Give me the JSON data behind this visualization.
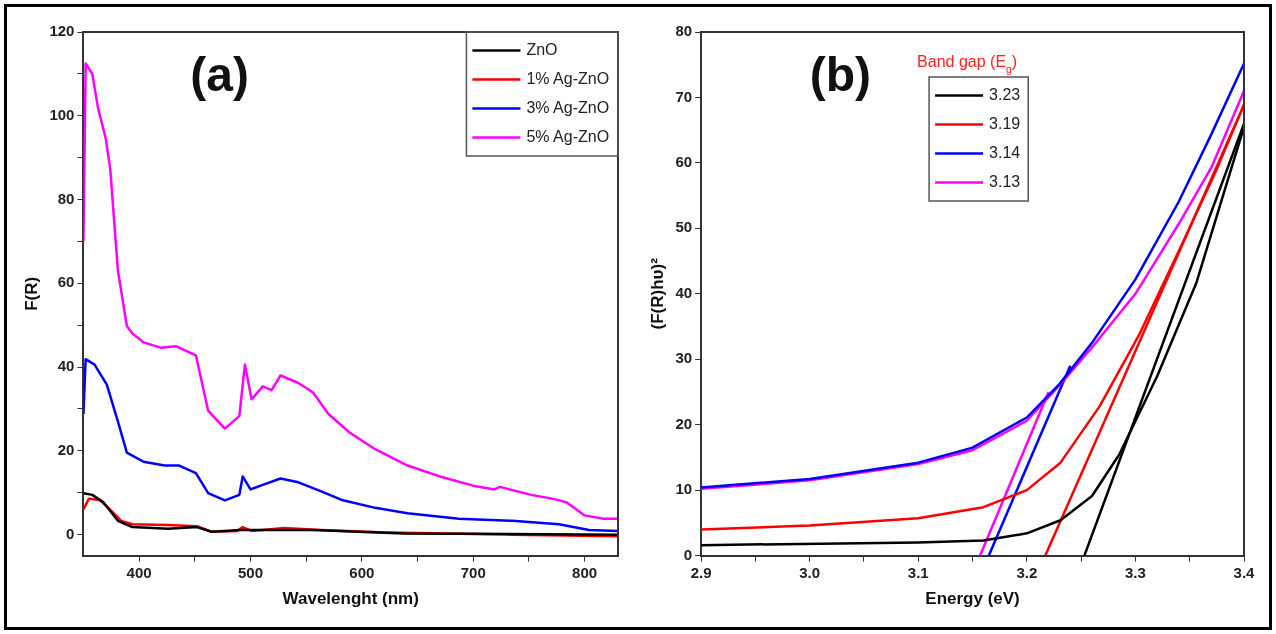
{
  "chart_data": [
    {
      "type": "line",
      "xlabel": "Wavelenght (nm)",
      "ylabel": "F(R)",
      "annotations": [
        "(a)"
      ],
      "legend": "top right",
      "grid": false,
      "xlim": [
        350,
        830
      ],
      "xticks": [
        400,
        {
          "value": 450,
          "label": null
        },
        500,
        {
          "value": 550,
          "label": null
        },
        600,
        {
          "value": 650,
          "label": null
        },
        700,
        {
          "value": 750,
          "label": null
        },
        800
      ],
      "ylim": [
        -5,
        120
      ],
      "yticks": [
        0,
        {
          "value": 10,
          "label": null
        },
        20,
        {
          "value": 30,
          "label": null
        },
        40,
        {
          "value": 50,
          "label": null
        },
        60,
        {
          "value": 70,
          "label": null
        },
        80,
        {
          "value": 90,
          "label": null
        },
        100,
        {
          "value": 110,
          "label": null
        },
        120
      ],
      "series": [
        {
          "name": "ZnO",
          "color": "#000000",
          "x": [
            350,
            358,
            368,
            381,
            394,
            426,
            452,
            465,
            491,
            556,
            638,
            830
          ],
          "values": [
            9.9,
            9.5,
            7.7,
            3.3,
            1.8,
            1.4,
            1.8,
            0.7,
            1.1,
            1.1,
            0.3,
            0
          ]
        },
        {
          "name": "1% Ag-ZnO",
          "color": "#ff0000",
          "x": [
            350,
            355,
            365,
            374,
            384,
            394,
            426,
            452,
            465,
            488,
            493,
            501,
            530,
            563,
            622,
            735,
            830
          ],
          "values": [
            6,
            8.6,
            8.2,
            6,
            3.3,
            2.5,
            2.3,
            2,
            0.7,
            0.9,
            1.8,
            0.9,
            1.6,
            1.1,
            0.5,
            0,
            -0.4
          ]
        },
        {
          "name": "3% Ag-ZnO",
          "color": "#0000ff",
          "x": [
            350,
            352,
            360,
            371,
            381,
            389,
            404,
            423,
            436,
            451,
            462,
            477,
            490,
            493,
            500,
            511,
            527,
            543,
            563,
            583,
            612,
            641,
            687,
            735,
            777,
            804,
            830
          ],
          "values": [
            28.8,
            41.9,
            40.6,
            35.8,
            27,
            19.6,
            17.4,
            16.5,
            16.5,
            14.7,
            9.9,
            8.2,
            9.5,
            13.9,
            10.8,
            11.9,
            13.4,
            12.5,
            10.4,
            8.2,
            6.4,
            5.1,
            3.8,
            3.3,
            2.5,
            1.1,
            0.9
          ]
        },
        {
          "name": "5% Ag-ZnO",
          "color": "#ff00ff",
          "x": [
            350,
            352,
            358,
            363,
            370,
            374,
            381,
            389,
            394,
            404,
            420,
            433,
            451,
            462,
            477,
            490,
            495,
            501,
            511,
            519,
            527,
            543,
            556,
            570,
            589,
            612,
            641,
            670,
            700,
            719,
            724,
            752,
            771,
            784,
            800,
            817,
            830
          ],
          "values": [
            70,
            112.5,
            110,
            102,
            94.6,
            87.5,
            63,
            49.8,
            48,
            45.9,
            44.6,
            45,
            42.8,
            29.6,
            25.3,
            28.3,
            40.6,
            32.3,
            35.4,
            34.5,
            38,
            36.2,
            34,
            28.8,
            24.4,
            20.4,
            16.5,
            13.9,
            11.7,
            10.8,
            11.4,
            9.5,
            8.6,
            7.7,
            4.6,
            3.8,
            3.8
          ]
        }
      ]
    },
    {
      "type": "line",
      "xlabel": "Energy (eV)",
      "ylabel": "(F(R)hυ)²",
      "legend_title": "Band gap (E$_{g}$)",
      "annotations": [
        "(b)"
      ],
      "legend": "top left",
      "grid": false,
      "xlim": [
        2.9,
        3.4
      ],
      "xticks": [
        2.9,
        {
          "value": 2.95,
          "label": null
        },
        {
          "value": 3.0,
          "label": "3.0"
        },
        {
          "value": 3.05,
          "label": null
        },
        3.1,
        {
          "value": 3.15,
          "label": null
        },
        3.2,
        {
          "value": 3.25,
          "label": null
        },
        3.3,
        {
          "value": 3.35,
          "label": null
        },
        3.4
      ],
      "ylim": [
        0,
        80
      ],
      "yticks": [
        0,
        10,
        20,
        30,
        40,
        50,
        60,
        70,
        80
      ],
      "series": [
        {
          "name": "3.23",
          "color": "#000000",
          "x": [
            2.9,
            3.1,
            3.16,
            3.2,
            3.231,
            3.26,
            3.285,
            3.32,
            3.356,
            3.4
          ],
          "values": [
            1.6,
            2.0,
            2.3,
            3.4,
            5.4,
            9.1,
            15.4,
            27.4,
            41.6,
            65.5
          ]
        },
        {
          "name": "3.19",
          "color": "#ff0000",
          "x": [
            2.9,
            3.0,
            3.1,
            3.16,
            3.2,
            3.231,
            3.267,
            3.303,
            3.339,
            3.374,
            3.4
          ],
          "values": [
            4.0,
            4.6,
            5.7,
            7.4,
            10,
            14.2,
            22.8,
            33.6,
            46.2,
            58.7,
            68.9
          ]
        },
        {
          "name": "3.14",
          "color": "#0000ff",
          "x": [
            2.9,
            3.0,
            3.1,
            3.15,
            3.2,
            3.23,
            3.26,
            3.3,
            3.34,
            3.37,
            3.4
          ],
          "values": [
            10.4,
            11.7,
            14.2,
            16.5,
            21.1,
            26.2,
            32.5,
            42.2,
            54.1,
            64.4,
            75.2
          ]
        },
        {
          "name": "3.13",
          "color": "#ff00ff",
          "x": [
            2.9,
            3.0,
            3.1,
            3.15,
            3.2,
            3.23,
            3.26,
            3.3,
            3.34,
            3.37,
            3.4
          ],
          "values": [
            10.2,
            11.5,
            14,
            16.1,
            20.6,
            26,
            31.8,
            40,
            50.7,
            59.3,
            71
          ]
        },
        {
          "type": "line",
          "color": "#000000",
          "x": [
            3.253,
            3.4
          ],
          "values": [
            0,
            66
          ]
        },
        {
          "type": "line",
          "color": "#ff0000",
          "x": [
            3.217,
            3.4
          ],
          "values": [
            0,
            68.9
          ]
        },
        {
          "type": "line",
          "color": "#0000ff",
          "x": [
            3.165,
            3.24
          ],
          "values": [
            0,
            29
          ]
        },
        {
          "type": "line",
          "color": "#ff00ff",
          "x": [
            3.157,
            3.22
          ],
          "values": [
            0,
            25
          ]
        }
      ]
    }
  ]
}
